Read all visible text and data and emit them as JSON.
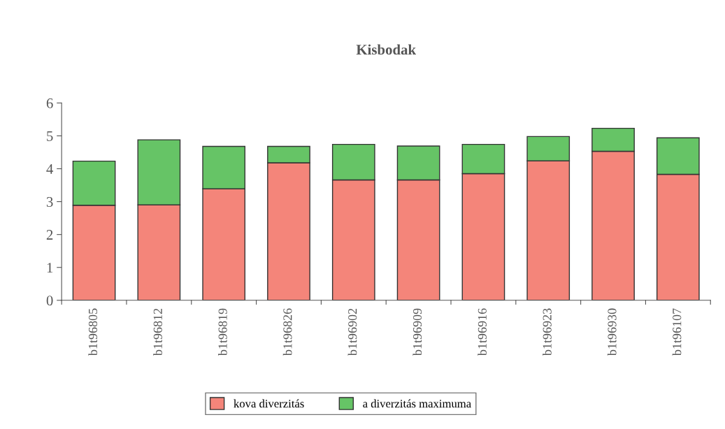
{
  "chart_data": {
    "type": "bar",
    "title": "Kisbodak",
    "stacked": true,
    "categories": [
      "b1t96805",
      "b1t96812",
      "b1t96819",
      "b1t96826",
      "b1t96902",
      "b1t96909",
      "b1t96916",
      "b1t96923",
      "b1t96930",
      "b1t96107"
    ],
    "series": [
      {
        "name": "kova diverzitás",
        "color": "#f4857a",
        "values": [
          2.89,
          2.9,
          3.39,
          4.18,
          3.66,
          3.66,
          3.85,
          4.24,
          4.53,
          3.83
        ]
      },
      {
        "name": "a diverzitás maximuma",
        "color": "#66c466",
        "values": [
          1.34,
          1.98,
          1.29,
          0.5,
          1.08,
          1.03,
          0.89,
          0.74,
          0.7,
          1.11
        ]
      }
    ],
    "ylim": [
      0,
      6
    ],
    "yticks": [
      0,
      1,
      2,
      3,
      4,
      5,
      6
    ],
    "grid": false,
    "legend": "bottom"
  }
}
